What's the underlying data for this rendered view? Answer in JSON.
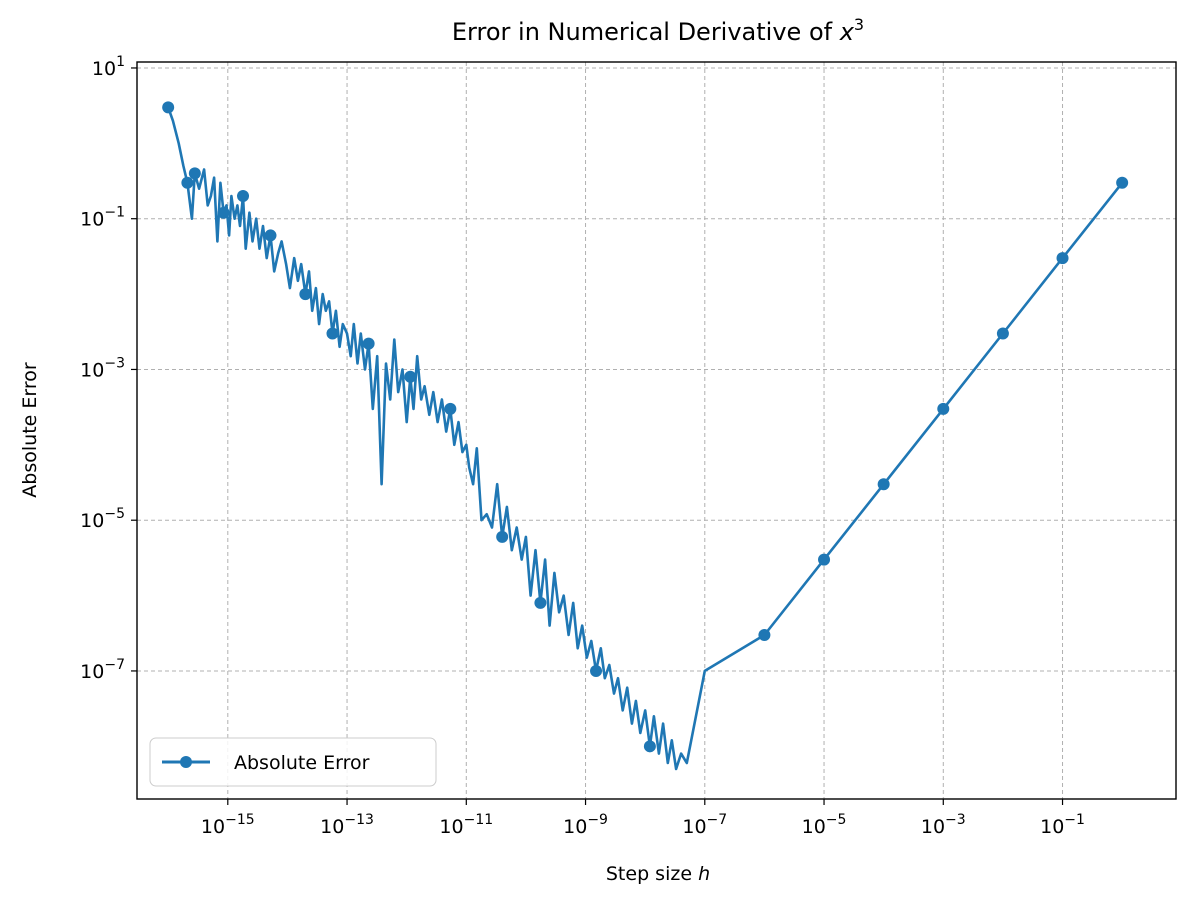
{
  "chart_data": {
    "type": "line",
    "title": "Error in Numerical Derivative of x³",
    "title_parts": {
      "prefix": "Error in Numerical Derivative of ",
      "var": "x",
      "sup": "3"
    },
    "xlabel_parts": {
      "prefix": "Step size ",
      "var": "h"
    },
    "ylabel": "Absolute Error",
    "xscale": "log",
    "yscale": "log",
    "xlim": [
      3e-17,
      8
    ],
    "ylim": [
      2e-09,
      12
    ],
    "grid": true,
    "legend_position": "lower-left",
    "xticks": [
      {
        "value": 1e-15,
        "base": "10",
        "exp": "−15"
      },
      {
        "value": 1e-13,
        "base": "10",
        "exp": "−13"
      },
      {
        "value": 1e-11,
        "base": "10",
        "exp": "−11"
      },
      {
        "value": 1e-09,
        "base": "10",
        "exp": "−9"
      },
      {
        "value": 1e-07,
        "base": "10",
        "exp": "−7"
      },
      {
        "value": 1e-05,
        "base": "10",
        "exp": "−5"
      },
      {
        "value": 0.001,
        "base": "10",
        "exp": "−3"
      },
      {
        "value": 0.1,
        "base": "10",
        "exp": "−1"
      }
    ],
    "yticks": [
      {
        "value": 10,
        "base": "10",
        "exp": "1"
      },
      {
        "value": 0.1,
        "base": "10",
        "exp": "−1"
      },
      {
        "value": 0.001,
        "base": "10",
        "exp": "−3"
      },
      {
        "value": 1e-05,
        "base": "10",
        "exp": "−5"
      },
      {
        "value": 1e-07,
        "base": "10",
        "exp": "−7"
      }
    ],
    "series": [
      {
        "name": "Absolute Error",
        "color": "#1f77b4",
        "x": [
          1e-16,
          1.2e-16,
          1.5e-16,
          1.8e-16,
          2.1e-16,
          2.5e-16,
          2.8e-16,
          3.3e-16,
          4e-16,
          4.6e-16,
          5.2e-16,
          5.9e-16,
          6.7e-16,
          7.5e-16,
          8.5e-16,
          9.5e-16,
          1.05e-15,
          1.15e-15,
          1.3e-15,
          1.45e-15,
          1.6e-15,
          1.8e-15,
          2e-15,
          2.3e-15,
          2.6e-15,
          3e-15,
          3.4e-15,
          3.9e-15,
          4.5e-15,
          5.2e-15,
          6e-15,
          7e-15,
          8e-15,
          9.5e-15,
          1.1e-14,
          1.3e-14,
          1.5e-14,
          1.7e-14,
          2e-14,
          2.3e-14,
          2.6e-14,
          3e-14,
          3.4e-14,
          3.9e-14,
          4.4e-14,
          5e-14,
          5.7e-14,
          6.5e-14,
          7.5e-14,
          8.5e-14,
          1e-13,
          1.15e-13,
          1.3e-13,
          1.5e-13,
          1.7e-13,
          2e-13,
          2.3e-13,
          2.7e-13,
          3.2e-13,
          3.8e-13,
          4.5e-13,
          5.3e-13,
          6.2e-13,
          7.2e-13,
          8.5e-13,
          1e-12,
          1.15e-12,
          1.3e-12,
          1.5e-12,
          1.75e-12,
          2e-12,
          2.4e-12,
          2.8e-12,
          3.3e-12,
          3.9e-12,
          4.6e-12,
          5.4e-12,
          6.3e-12,
          7.4e-12,
          8.6e-12,
          1e-11,
          1.12e-11,
          1.3e-11,
          1.5e-11,
          1.8e-11,
          2.2e-11,
          2.7e-11,
          3.3e-11,
          4e-11,
          4.8e-11,
          5.8e-11,
          7e-11,
          8.5e-11,
          1e-10,
          1.2e-10,
          1.45e-10,
          1.75e-10,
          2.1e-10,
          2.5e-10,
          3e-10,
          3.6e-10,
          4.3e-10,
          5.2e-10,
          6.2e-10,
          7.4e-10,
          8.8e-10,
          1.05e-09,
          1.25e-09,
          1.5e-09,
          1.8e-09,
          2.1e-09,
          2.5e-09,
          3e-09,
          3.5e-09,
          4.2e-09,
          5e-09,
          6e-09,
          7e-09,
          8.3e-09,
          1e-08,
          1.2e-08,
          1.4e-08,
          1.7e-08,
          2e-08,
          2.4e-08,
          2.8e-08,
          3.3e-08,
          4e-08,
          5e-08,
          1e-07,
          1e-06,
          1e-05,
          0.0001,
          0.001,
          0.01,
          0.1,
          1
        ],
        "y": [
          3,
          2,
          1,
          0.5,
          0.3,
          0.1,
          0.4,
          0.25,
          0.45,
          0.15,
          0.2,
          0.35,
          0.05,
          0.3,
          0.12,
          0.15,
          0.06,
          0.2,
          0.1,
          0.15,
          0.08,
          0.2,
          0.04,
          0.12,
          0.05,
          0.1,
          0.04,
          0.08,
          0.03,
          0.06,
          0.02,
          0.035,
          0.05,
          0.025,
          0.012,
          0.03,
          0.015,
          0.025,
          0.01,
          0.02,
          0.006,
          0.012,
          0.004,
          0.01,
          0.006,
          0.008,
          0.003,
          0.006,
          0.002,
          0.004,
          0.003,
          0.0015,
          0.004,
          0.0012,
          0.003,
          0.001,
          0.0022,
          0.0003,
          0.0015,
          3e-05,
          0.0012,
          0.0004,
          0.0025,
          0.0005,
          0.001,
          0.0002,
          0.0008,
          0.0003,
          0.0015,
          0.0004,
          0.0006,
          0.00025,
          0.0005,
          0.0002,
          0.0004,
          0.00015,
          0.0003,
          0.0001,
          0.0002,
          8e-05,
          0.0001,
          5e-05,
          3e-05,
          9e-05,
          1e-05,
          1.2e-05,
          8e-06,
          3e-05,
          6e-06,
          1.5e-05,
          4e-06,
          8e-06,
          3e-06,
          6e-06,
          1e-06,
          4e-06,
          8e-07,
          3e-06,
          4e-07,
          2e-06,
          6e-07,
          1e-06,
          3e-07,
          8e-07,
          2e-07,
          4e-07,
          1.5e-07,
          2.5e-07,
          1e-07,
          2e-07,
          8e-08,
          1.2e-07,
          5e-08,
          8e-08,
          3e-08,
          6e-08,
          2e-08,
          4e-08,
          1.5e-08,
          3e-08,
          1e-08,
          2.5e-08,
          8e-09,
          2e-08,
          6e-09,
          1.2e-08,
          5e-09,
          8e-09,
          6e-09,
          1e-07,
          3e-07,
          3e-06,
          3e-05,
          0.0003,
          0.003,
          0.03,
          0.3
        ],
        "marker_indices": [
          0,
          4,
          6,
          14,
          21,
          29,
          38,
          46,
          56,
          66,
          76,
          88,
          96,
          108,
          120,
          130,
          131,
          132,
          133,
          134,
          135,
          136
        ]
      }
    ]
  }
}
